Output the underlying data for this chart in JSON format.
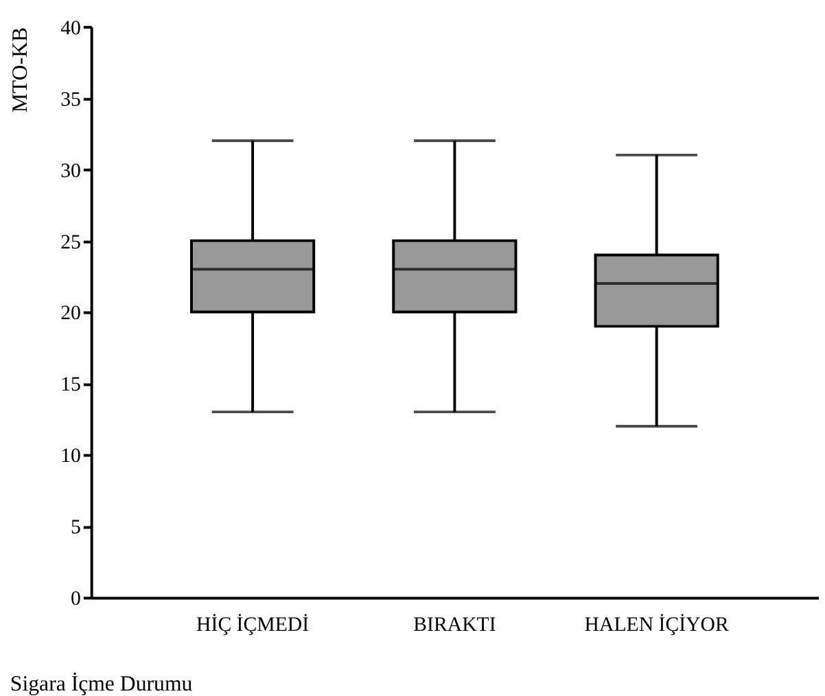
{
  "chart_data": {
    "type": "box",
    "xlabel": "Sigara İçme Durumu",
    "ylabel": "MTO-KB",
    "categories": [
      "HİÇ İÇMEDİ",
      "BIRAKTI",
      "HALEN İÇİYOR"
    ],
    "series": [
      {
        "color": "#999999",
        "boxes": [
          {
            "low": 13,
            "q1": 20,
            "median": 23,
            "q3": 25,
            "high": 32
          },
          {
            "low": 13,
            "q1": 20,
            "median": 23,
            "q3": 25,
            "high": 32
          },
          {
            "low": 12,
            "q1": 19,
            "median": 22,
            "q3": 24,
            "high": 31
          }
        ]
      }
    ],
    "ylim": [
      0,
      40
    ],
    "yticks": [
      0,
      5,
      10,
      15,
      20,
      25,
      30,
      35,
      40
    ],
    "grid": false
  }
}
